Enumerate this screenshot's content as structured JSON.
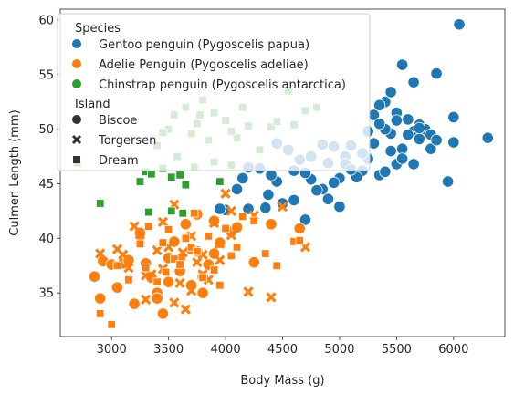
{
  "chart_data": {
    "type": "scatter",
    "xlabel": "Body Mass (g)",
    "ylabel": "Culmen Length (mm)",
    "xlim": [
      2550,
      6450
    ],
    "ylim": [
      31,
      61
    ],
    "xticks": [
      3000,
      3500,
      4000,
      4500,
      5000,
      5500,
      6000
    ],
    "yticks": [
      35,
      40,
      45,
      50,
      55,
      60
    ],
    "grid": false,
    "legend_placement": "top-left",
    "legend": {
      "hue_title": "Species",
      "style_title": "Island",
      "species": [
        {
          "name": "Gentoo penguin (Pygoscelis papua)",
          "color": "#1f77b4"
        },
        {
          "name": "Adelie Penguin (Pygoscelis adeliae)",
          "color": "#ff7f0e"
        },
        {
          "name": "Chinstrap penguin (Pygoscelis antarctica)",
          "color": "#2ca02c"
        }
      ],
      "islands": [
        {
          "name": "Biscoe",
          "marker": "circle"
        },
        {
          "name": "Torgersen",
          "marker": "x"
        },
        {
          "name": "Dream",
          "marker": "square"
        }
      ]
    },
    "series": [
      {
        "species": "Gentoo penguin (Pygoscelis papua)",
        "island": "Biscoe",
        "marker": "circle",
        "color": "#1f77b4",
        "points": [
          [
            6050,
            59.6
          ],
          [
            5550,
            55.9
          ],
          [
            5650,
            54.3
          ],
          [
            5850,
            55.1
          ],
          [
            5450,
            53.4
          ],
          [
            5400,
            52.5
          ],
          [
            5350,
            52.2
          ],
          [
            5300,
            51.3
          ],
          [
            5500,
            51.5
          ],
          [
            5600,
            50.9
          ],
          [
            5700,
            50.4
          ],
          [
            5750,
            50.0
          ],
          [
            5650,
            49.8
          ],
          [
            5800,
            49.5
          ],
          [
            5700,
            49.1
          ],
          [
            5950,
            45.2
          ],
          [
            6000,
            51.1
          ],
          [
            6000,
            48.8
          ],
          [
            6300,
            49.2
          ],
          [
            5800,
            48.2
          ],
          [
            5650,
            46.8
          ],
          [
            5500,
            46.8
          ],
          [
            5550,
            48.2
          ],
          [
            5450,
            49.6
          ],
          [
            5400,
            50.0
          ],
          [
            5250,
            47.3
          ],
          [
            5200,
            46.2
          ],
          [
            5150,
            45.6
          ],
          [
            5100,
            48.5
          ],
          [
            5050,
            47.5
          ],
          [
            5000,
            45.5
          ],
          [
            5000,
            42.9
          ],
          [
            4950,
            45.1
          ],
          [
            4900,
            43.6
          ],
          [
            4850,
            44.5
          ],
          [
            4800,
            44.4
          ],
          [
            4750,
            45.4
          ],
          [
            4700,
            46.0
          ],
          [
            4700,
            41.7
          ],
          [
            4650,
            40.9
          ],
          [
            4600,
            43.5
          ],
          [
            4500,
            43.2
          ],
          [
            4450,
            45.2
          ],
          [
            4400,
            45.8
          ],
          [
            4375,
            44.0
          ],
          [
            4350,
            42.8
          ],
          [
            4300,
            46.4
          ],
          [
            4200,
            46.5
          ],
          [
            4150,
            45.5
          ],
          [
            4100,
            44.5
          ],
          [
            4200,
            42.7
          ],
          [
            4000,
            42.6
          ],
          [
            3950,
            42.7
          ],
          [
            4600,
            46.2
          ],
          [
            4750,
            47.5
          ],
          [
            4850,
            48.6
          ],
          [
            4900,
            46.9
          ],
          [
            4950,
            48.4
          ],
          [
            5050,
            46.8
          ],
          [
            5100,
            46.3
          ],
          [
            5200,
            47.8
          ],
          [
            5250,
            49.8
          ],
          [
            5300,
            48.7
          ],
          [
            5350,
            50.5
          ],
          [
            5450,
            48.0
          ],
          [
            5550,
            47.3
          ],
          [
            5600,
            49.5
          ],
          [
            5500,
            50.8
          ],
          [
            5350,
            45.8
          ],
          [
            5400,
            46.1
          ],
          [
            5700,
            50.1
          ],
          [
            5850,
            49.0
          ],
          [
            4650,
            47.2
          ],
          [
            4550,
            48.1
          ],
          [
            4450,
            48.7
          ]
        ]
      },
      {
        "species": "Adelie Penguin (Pygoscelis adeliae)",
        "island": "Biscoe",
        "marker": "circle",
        "color": "#ff7f0e",
        "points": [
          [
            2850,
            36.5
          ],
          [
            2900,
            34.5
          ],
          [
            2925,
            37.9
          ],
          [
            3000,
            37.6
          ],
          [
            3050,
            35.5
          ],
          [
            3100,
            37.7
          ],
          [
            3150,
            38.0
          ],
          [
            3200,
            34.0
          ],
          [
            3250,
            40.5
          ],
          [
            3300,
            37.7
          ],
          [
            3350,
            36.4
          ],
          [
            3400,
            35.0
          ],
          [
            3450,
            33.1
          ],
          [
            3500,
            38.2
          ],
          [
            3550,
            39.7
          ],
          [
            3600,
            37.0
          ],
          [
            3650,
            41.3
          ],
          [
            3700,
            35.7
          ],
          [
            3750,
            38.8
          ],
          [
            3800,
            35.0
          ],
          [
            3850,
            37.6
          ],
          [
            3900,
            41.6
          ],
          [
            3950,
            39.6
          ],
          [
            4050,
            40.6
          ],
          [
            4100,
            41.0
          ],
          [
            4250,
            37.8
          ],
          [
            4400,
            41.3
          ],
          [
            4650,
            40.9
          ],
          [
            3500,
            36.0
          ],
          [
            3700,
            39.0
          ],
          [
            3600,
            38.1
          ],
          [
            3800,
            36.5
          ],
          [
            3900,
            38.6
          ],
          [
            3750,
            42.2
          ],
          [
            3400,
            34.5
          ]
        ]
      },
      {
        "species": "Adelie Penguin (Pygoscelis adeliae)",
        "island": "Torgersen",
        "marker": "x",
        "color": "#ff7f0e",
        "points": [
          [
            2900,
            38.6
          ],
          [
            3050,
            39.0
          ],
          [
            3100,
            38.5
          ],
          [
            3150,
            37.3
          ],
          [
            3200,
            41.1
          ],
          [
            3250,
            39.8
          ],
          [
            3300,
            36.6
          ],
          [
            3350,
            36.7
          ],
          [
            3400,
            38.9
          ],
          [
            3450,
            41.5
          ],
          [
            3500,
            39.2
          ],
          [
            3550,
            43.1
          ],
          [
            3600,
            35.9
          ],
          [
            3625,
            38.7
          ],
          [
            3650,
            33.5
          ],
          [
            3700,
            40.2
          ],
          [
            3750,
            37.8
          ],
          [
            3800,
            38.5
          ],
          [
            3850,
            36.2
          ],
          [
            3900,
            41.4
          ],
          [
            3950,
            39.5
          ],
          [
            4000,
            44.1
          ],
          [
            4050,
            40.3
          ],
          [
            4200,
            35.1
          ],
          [
            4250,
            42.1
          ],
          [
            4400,
            34.6
          ],
          [
            4500,
            42.9
          ],
          [
            4700,
            39.2
          ],
          [
            3300,
            34.4
          ],
          [
            3450,
            37.2
          ],
          [
            3700,
            35.2
          ],
          [
            3800,
            36.7
          ],
          [
            3950,
            38.0
          ],
          [
            4050,
            42.5
          ],
          [
            3550,
            34.1
          ]
        ]
      },
      {
        "species": "Adelie Penguin (Pygoscelis adeliae)",
        "island": "Dream",
        "marker": "square",
        "color": "#ff7f0e",
        "points": [
          [
            2900,
            33.1
          ],
          [
            3000,
            32.1
          ],
          [
            3050,
            37.5
          ],
          [
            3150,
            36.2
          ],
          [
            3250,
            39.5
          ],
          [
            3300,
            37.3
          ],
          [
            3400,
            36.0
          ],
          [
            3450,
            39.6
          ],
          [
            3500,
            40.8
          ],
          [
            3550,
            38.1
          ],
          [
            3600,
            37.6
          ],
          [
            3650,
            40.0
          ],
          [
            3700,
            39.2
          ],
          [
            3750,
            38.8
          ],
          [
            3800,
            36.4
          ],
          [
            3850,
            40.2
          ],
          [
            3900,
            37.1
          ],
          [
            3950,
            35.7
          ],
          [
            4000,
            40.9
          ],
          [
            4050,
            38.4
          ],
          [
            4100,
            39.2
          ],
          [
            4150,
            42.0
          ],
          [
            4250,
            41.6
          ],
          [
            4350,
            38.6
          ],
          [
            4450,
            37.5
          ],
          [
            4600,
            39.7
          ],
          [
            4650,
            39.8
          ],
          [
            3325,
            41.1
          ],
          [
            3475,
            36.9
          ],
          [
            3725,
            42.3
          ]
        ]
      },
      {
        "species": "Chinstrap penguin (Pygoscelis antarctica)",
        "island": "Dream",
        "marker": "square",
        "color": "#2ca02c",
        "points": [
          [
            2700,
            46.9
          ],
          [
            2900,
            43.2
          ],
          [
            3250,
            45.2
          ],
          [
            3300,
            46.1
          ],
          [
            3325,
            42.4
          ],
          [
            3350,
            45.9
          ],
          [
            3400,
            48.5
          ],
          [
            3450,
            46.4
          ],
          [
            3500,
            50.0
          ],
          [
            3525,
            45.6
          ],
          [
            3550,
            51.3
          ],
          [
            3575,
            47.5
          ],
          [
            3600,
            45.8
          ],
          [
            3650,
            52.0
          ],
          [
            3700,
            49.6
          ],
          [
            3725,
            46.5
          ],
          [
            3750,
            50.5
          ],
          [
            3775,
            51.3
          ],
          [
            3800,
            52.7
          ],
          [
            3850,
            49.0
          ],
          [
            3900,
            51.5
          ],
          [
            3950,
            45.2
          ],
          [
            4000,
            50.8
          ],
          [
            4050,
            46.7
          ],
          [
            4100,
            49.2
          ],
          [
            4150,
            52.0
          ],
          [
            4200,
            50.3
          ],
          [
            4300,
            48.1
          ],
          [
            4400,
            50.2
          ],
          [
            4450,
            50.7
          ],
          [
            4550,
            53.5
          ],
          [
            4600,
            50.4
          ],
          [
            4700,
            51.7
          ],
          [
            4800,
            52.0
          ],
          [
            3525,
            42.5
          ],
          [
            3625,
            42.3
          ],
          [
            3450,
            49.7
          ],
          [
            3900,
            47.0
          ],
          [
            4050,
            49.8
          ],
          [
            3650,
            44.9
          ]
        ]
      }
    ]
  }
}
